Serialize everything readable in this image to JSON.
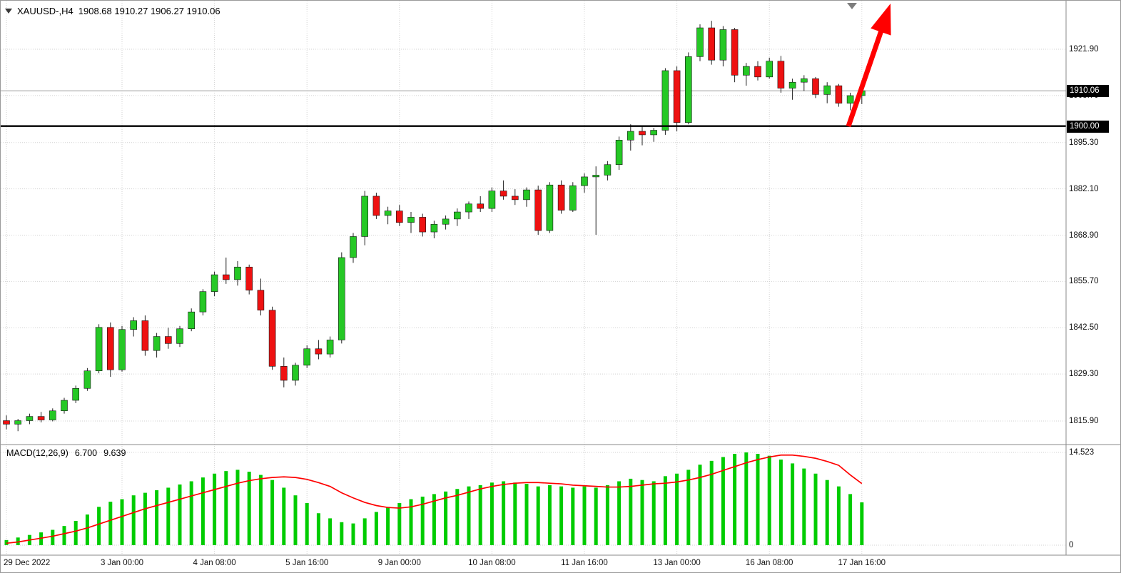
{
  "header": {
    "symbol": "XAUUSD-,H4",
    "ohlc": "1908.68 1910.27 1906.27 1910.06"
  },
  "price_badges": {
    "current": "1910.06",
    "level": "1900.00"
  },
  "indicator_label": {
    "name": "MACD(12,26,9)",
    "main": "6.700",
    "signal": "9.639"
  },
  "macd_scale": {
    "max": "14.523",
    "zero": "0"
  },
  "colors": {
    "bull": "#25c825",
    "bear": "#ee1111",
    "macd_histogram": "#00cc00",
    "macd_signal": "#ff0000",
    "annotation_arrow": "#ff0000",
    "grid": "#d2d2d2",
    "level_line": "#000000",
    "current_price_line": "#9a9a9a",
    "badge_bg": "#000000",
    "badge_text": "#ffffff"
  },
  "chart_data": {
    "type": "candlestick",
    "symbol": "XAUUSD-",
    "timeframe": "H4",
    "title": "XAUUSD-,H4 1908.68 1910.27 1906.27 1910.06",
    "last_quote": {
      "open": 1908.68,
      "high": 1910.27,
      "low": 1906.27,
      "close": 1910.06
    },
    "price_axis": {
      "ticks": [
        {
          "label": "1921.90",
          "value": 1921.9
        },
        {
          "label": "1908.70",
          "value": 1908.7
        },
        {
          "label": "1895.30",
          "value": 1895.3
        },
        {
          "label": "1882.10",
          "value": 1882.1
        },
        {
          "label": "1868.90",
          "value": 1868.9
        },
        {
          "label": "1855.70",
          "value": 1855.7
        },
        {
          "label": "1842.50",
          "value": 1842.5
        },
        {
          "label": "1829.30",
          "value": 1829.3
        },
        {
          "label": "1815.90",
          "value": 1815.9
        }
      ],
      "current_price": 1910.06,
      "level_line": 1900.0
    },
    "time_axis": [
      {
        "index": 0,
        "label": "29 Dec 2022"
      },
      {
        "index": 10,
        "label": "3 Jan 00:00"
      },
      {
        "index": 18,
        "label": "4 Jan 08:00"
      },
      {
        "index": 26,
        "label": "5 Jan 16:00"
      },
      {
        "index": 34,
        "label": "9 Jan 00:00"
      },
      {
        "index": 42,
        "label": "10 Jan 08:00"
      },
      {
        "index": 50,
        "label": "11 Jan 16:00"
      },
      {
        "index": 58,
        "label": "13 Jan 00:00"
      },
      {
        "index": 66,
        "label": "16 Jan 08:00"
      },
      {
        "index": 74,
        "label": "17 Jan 16:00"
      }
    ],
    "candles": [
      [
        1816.0,
        1817.5,
        1813.5,
        1815.0
      ],
      [
        1815.0,
        1816.5,
        1813.0,
        1816.0
      ],
      [
        1816.0,
        1818.0,
        1815.0,
        1817.2
      ],
      [
        1817.2,
        1818.5,
        1815.5,
        1816.2
      ],
      [
        1816.2,
        1819.5,
        1815.8,
        1818.8
      ],
      [
        1818.8,
        1822.5,
        1818.0,
        1821.8
      ],
      [
        1821.8,
        1826.0,
        1821.0,
        1825.2
      ],
      [
        1825.2,
        1831.0,
        1824.5,
        1830.2
      ],
      [
        1830.2,
        1843.5,
        1829.5,
        1842.6
      ],
      [
        1842.6,
        1844.0,
        1828.5,
        1830.5
      ],
      [
        1830.5,
        1843.0,
        1830.0,
        1842.0
      ],
      [
        1842.0,
        1845.5,
        1840.0,
        1844.5
      ],
      [
        1844.5,
        1846.0,
        1834.5,
        1836.0
      ],
      [
        1836.0,
        1841.0,
        1834.0,
        1840.0
      ],
      [
        1840.0,
        1842.5,
        1836.5,
        1838.0
      ],
      [
        1838.0,
        1843.0,
        1837.0,
        1842.2
      ],
      [
        1842.2,
        1848.0,
        1841.5,
        1847.0
      ],
      [
        1847.0,
        1853.5,
        1846.0,
        1852.8
      ],
      [
        1852.8,
        1858.5,
        1851.5,
        1857.6
      ],
      [
        1857.6,
        1862.5,
        1855.0,
        1856.2
      ],
      [
        1856.2,
        1861.5,
        1854.5,
        1859.8
      ],
      [
        1859.8,
        1860.5,
        1852.0,
        1853.2
      ],
      [
        1853.2,
        1856.5,
        1846.0,
        1847.5
      ],
      [
        1847.5,
        1848.5,
        1830.5,
        1831.5
      ],
      [
        1831.5,
        1834.0,
        1825.5,
        1827.5
      ],
      [
        1827.5,
        1832.5,
        1826.0,
        1831.8
      ],
      [
        1831.8,
        1837.5,
        1831.0,
        1836.5
      ],
      [
        1836.5,
        1839.0,
        1833.5,
        1835.0
      ],
      [
        1835.0,
        1840.0,
        1834.0,
        1839.0
      ],
      [
        1839.0,
        1864.0,
        1838.0,
        1862.5
      ],
      [
        1862.5,
        1869.5,
        1861.0,
        1868.5
      ],
      [
        1868.5,
        1881.5,
        1866.0,
        1880.0
      ],
      [
        1880.0,
        1881.0,
        1873.5,
        1874.5
      ],
      [
        1874.5,
        1877.0,
        1872.0,
        1875.8
      ],
      [
        1875.8,
        1877.5,
        1871.5,
        1872.5
      ],
      [
        1872.5,
        1875.5,
        1869.5,
        1874.0
      ],
      [
        1874.0,
        1875.0,
        1868.5,
        1869.8
      ],
      [
        1869.8,
        1873.0,
        1868.0,
        1872.0
      ],
      [
        1872.0,
        1874.5,
        1870.5,
        1873.5
      ],
      [
        1873.5,
        1876.5,
        1871.5,
        1875.5
      ],
      [
        1875.5,
        1878.5,
        1873.5,
        1877.8
      ],
      [
        1877.8,
        1880.0,
        1875.5,
        1876.5
      ],
      [
        1876.5,
        1882.5,
        1875.5,
        1881.5
      ],
      [
        1881.5,
        1884.5,
        1879.0,
        1880.0
      ],
      [
        1880.0,
        1882.0,
        1877.5,
        1879.0
      ],
      [
        1879.0,
        1882.5,
        1877.0,
        1881.8
      ],
      [
        1881.8,
        1883.0,
        1869.0,
        1870.2
      ],
      [
        1870.2,
        1884.0,
        1869.5,
        1883.2
      ],
      [
        1883.2,
        1884.5,
        1875.0,
        1876.0
      ],
      [
        1876.0,
        1884.0,
        1875.5,
        1883.0
      ],
      [
        1883.0,
        1886.5,
        1881.0,
        1885.5
      ],
      [
        1885.5,
        1888.5,
        1869.0,
        1886.0
      ],
      [
        1886.0,
        1890.0,
        1884.5,
        1889.0
      ],
      [
        1889.0,
        1897.0,
        1887.5,
        1896.0
      ],
      [
        1896.0,
        1900.5,
        1893.0,
        1898.5
      ],
      [
        1898.5,
        1900.0,
        1894.5,
        1897.5
      ],
      [
        1897.5,
        1899.5,
        1895.5,
        1898.8
      ],
      [
        1898.8,
        1916.5,
        1897.5,
        1915.8
      ],
      [
        1915.8,
        1917.0,
        1898.5,
        1901.0
      ],
      [
        1901.0,
        1921.0,
        1900.5,
        1919.8
      ],
      [
        1919.8,
        1929.0,
        1918.5,
        1928.0
      ],
      [
        1928.0,
        1930.0,
        1917.5,
        1918.8
      ],
      [
        1918.8,
        1928.5,
        1917.0,
        1927.5
      ],
      [
        1927.5,
        1928.0,
        1912.5,
        1914.5
      ],
      [
        1914.5,
        1918.0,
        1911.5,
        1917.0
      ],
      [
        1917.0,
        1918.5,
        1913.0,
        1914.0
      ],
      [
        1914.0,
        1919.5,
        1913.5,
        1918.5
      ],
      [
        1918.5,
        1920.0,
        1909.5,
        1910.8
      ],
      [
        1910.8,
        1913.5,
        1907.5,
        1912.5
      ],
      [
        1912.5,
        1914.5,
        1910.0,
        1913.5
      ],
      [
        1913.5,
        1914.0,
        1908.0,
        1909.0
      ],
      [
        1909.0,
        1912.5,
        1906.5,
        1911.5
      ],
      [
        1911.5,
        1912.0,
        1905.5,
        1906.5
      ],
      [
        1906.5,
        1909.5,
        1904.5,
        1908.68
      ],
      [
        1908.68,
        1910.27,
        1906.27,
        1910.06
      ]
    ],
    "indicator": {
      "type": "macd",
      "name": "MACD(12,26,9)",
      "main_value": 6.7,
      "signal_value": 9.639,
      "scale_max_value": 14.523,
      "scale_min_value": 0,
      "histogram": [
        0.8,
        1.2,
        1.6,
        2.0,
        2.4,
        3.0,
        3.8,
        4.8,
        6.0,
        6.8,
        7.2,
        7.8,
        8.2,
        8.6,
        9.0,
        9.5,
        10.0,
        10.6,
        11.2,
        11.6,
        11.8,
        11.5,
        11.0,
        10.2,
        9.0,
        7.8,
        6.6,
        5.0,
        4.2,
        3.6,
        3.4,
        4.2,
        5.2,
        6.0,
        6.6,
        7.2,
        7.6,
        8.0,
        8.4,
        8.8,
        9.2,
        9.4,
        9.8,
        10.0,
        9.8,
        9.6,
        9.2,
        9.4,
        9.2,
        9.0,
        9.2,
        9.0,
        9.4,
        10.0,
        10.4,
        10.2,
        10.0,
        10.8,
        11.2,
        11.8,
        12.6,
        13.2,
        13.8,
        14.3,
        14.52,
        14.3,
        14.0,
        13.4,
        12.8,
        12.0,
        11.2,
        10.2,
        9.2,
        8.0,
        6.7
      ],
      "signal": [
        0.3,
        0.5,
        0.8,
        1.1,
        1.4,
        1.8,
        2.2,
        2.7,
        3.3,
        3.9,
        4.5,
        5.1,
        5.7,
        6.2,
        6.7,
        7.2,
        7.7,
        8.2,
        8.7,
        9.2,
        9.7,
        10.1,
        10.4,
        10.6,
        10.7,
        10.6,
        10.3,
        9.8,
        9.2,
        8.2,
        7.4,
        6.7,
        6.2,
        5.9,
        5.8,
        6.0,
        6.4,
        6.9,
        7.4,
        7.8,
        8.3,
        8.8,
        9.2,
        9.5,
        9.7,
        9.8,
        9.8,
        9.7,
        9.6,
        9.4,
        9.3,
        9.2,
        9.1,
        9.1,
        9.2,
        9.4,
        9.6,
        9.7,
        9.9,
        10.2,
        10.6,
        11.1,
        11.7,
        12.3,
        12.9,
        13.4,
        13.8,
        14.1,
        14.1,
        13.9,
        13.6,
        13.1,
        12.5,
        11.0,
        9.639
      ]
    },
    "annotations": [
      {
        "type": "arrow-up",
        "tail": [
          1188,
          176
        ],
        "tip": [
          1247,
          4
        ]
      }
    ],
    "grid": true,
    "legend_position": "none"
  }
}
